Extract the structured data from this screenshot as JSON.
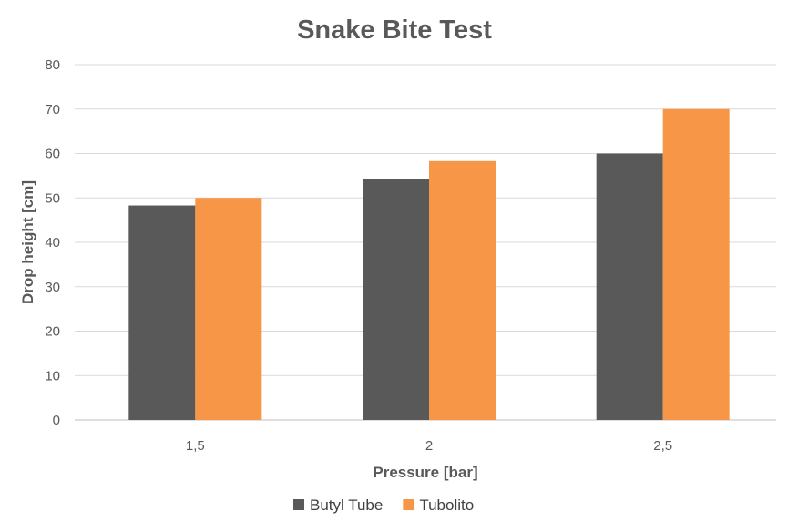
{
  "chart_data": {
    "type": "bar",
    "title": "Snake Bite Test",
    "xlabel": "Pressure [bar]",
    "ylabel": "Drop height [cm]",
    "categories": [
      "1,5",
      "2",
      "2,5"
    ],
    "series": [
      {
        "name": "Butyl Tube",
        "values": [
          48.3,
          54.2,
          60
        ],
        "color": "#595959"
      },
      {
        "name": "Tubolito",
        "values": [
          50,
          58.3,
          70
        ],
        "color": "#f79646"
      }
    ],
    "ylim": [
      0,
      80
    ],
    "yticks": [
      "0",
      "10",
      "20",
      "30",
      "40",
      "50",
      "60",
      "70",
      "80"
    ],
    "grid": true,
    "legend_position": "bottom"
  }
}
